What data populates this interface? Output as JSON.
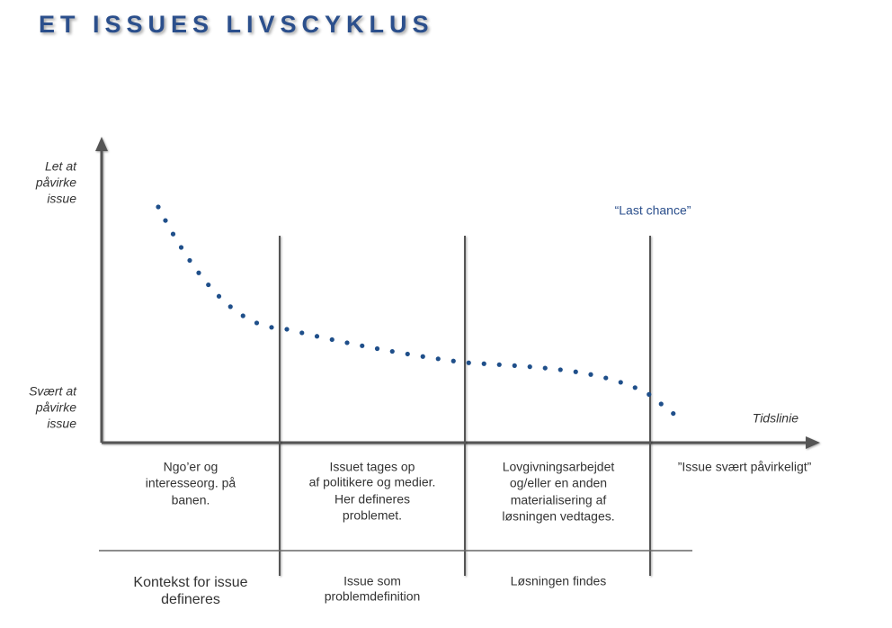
{
  "header": {
    "title": "ET ISSUES LIVSCYKLUS"
  },
  "axis": {
    "y_top": [
      "Let at",
      "påvirke",
      "issue"
    ],
    "y_bottom": [
      "Svært at",
      "påvirke",
      "issue"
    ],
    "x_label": "Tidslinie"
  },
  "marker": "“Last chance”",
  "phases": [
    {
      "description": [
        "Ngo’er og",
        "interesseorg. på",
        "banen."
      ],
      "outcome": [
        "Kontekst for issue",
        "defineres"
      ]
    },
    {
      "description": [
        "Issuet tages op",
        "af  politikere og medier.",
        "Her defineres",
        "problemet."
      ],
      "outcome": [
        "Issue som",
        "problemdefinition"
      ]
    },
    {
      "description": [
        "Lovgivningsarbejdet",
        "og/eller en anden",
        "materialisering af",
        "løsningen vedtages."
      ],
      "outcome": [
        "Løsningen findes"
      ]
    },
    {
      "description": [
        "”Issue svært påvirkeligt”"
      ]
    }
  ]
}
